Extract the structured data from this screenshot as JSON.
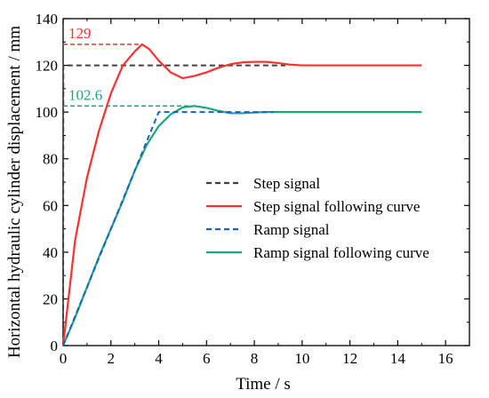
{
  "chart_data": {
    "type": "line",
    "title": "",
    "xlabel": "Time / s",
    "ylabel": "Horizontal hydraulic cylinder displacement / mm",
    "xlim": [
      0,
      17
    ],
    "ylim": [
      0,
      140
    ],
    "xticks": [
      0,
      2,
      4,
      6,
      8,
      10,
      12,
      14,
      16
    ],
    "yticks": [
      0,
      20,
      40,
      60,
      80,
      100,
      120,
      140
    ],
    "grid": false,
    "legend_position": "center-right",
    "series": [
      {
        "name": "Step signal",
        "color": "#404040",
        "style": "dashed",
        "x": [
          0,
          0.01,
          9.3
        ],
        "y": [
          0,
          120,
          120
        ]
      },
      {
        "name": "Step signal following curve",
        "color": "#ff3030",
        "style": "solid",
        "x": [
          0,
          0.5,
          1.0,
          1.5,
          2.0,
          2.5,
          3.0,
          3.3,
          3.6,
          4.0,
          4.5,
          5.0,
          5.5,
          6.0,
          6.5,
          7.0,
          7.5,
          8.0,
          8.5,
          9.0,
          9.5,
          10,
          11,
          12,
          13,
          14,
          15
        ],
        "y": [
          0,
          45,
          72,
          92,
          108,
          120,
          126,
          129,
          127,
          122,
          117,
          114.5,
          115.5,
          117,
          119,
          120.5,
          121.3,
          121.5,
          121.5,
          121,
          120.3,
          120,
          120,
          120,
          120,
          120,
          120
        ]
      },
      {
        "name": "Ramp signal",
        "color": "#1a5fd0",
        "style": "dashed",
        "x": [
          0,
          3.6,
          4.0,
          4.5,
          8.8
        ],
        "y": [
          0,
          90,
          100,
          100,
          100
        ]
      },
      {
        "name": "Ramp signal following curve",
        "color": "#1aa874",
        "style": "solid",
        "x": [
          0,
          0.5,
          1.0,
          1.5,
          2.0,
          2.5,
          3.0,
          3.5,
          4.0,
          4.5,
          5.0,
          5.5,
          6.0,
          6.5,
          7.0,
          7.5,
          8.0,
          8.5,
          9.0,
          10,
          11,
          12,
          13,
          14,
          15
        ],
        "y": [
          0,
          12,
          25,
          38,
          50,
          62,
          75,
          86,
          94,
          99,
          102,
          102.6,
          101.8,
          100.5,
          99.5,
          99.5,
          99.8,
          100,
          100,
          100,
          100,
          100,
          100,
          100,
          100
        ]
      }
    ],
    "annotations": [
      {
        "text": "129",
        "value": 129,
        "color": "#ff3030",
        "x_end": 3.3
      },
      {
        "text": "102.6",
        "value": 102.6,
        "color": "#1aa874",
        "x_end": 5.5
      }
    ]
  }
}
